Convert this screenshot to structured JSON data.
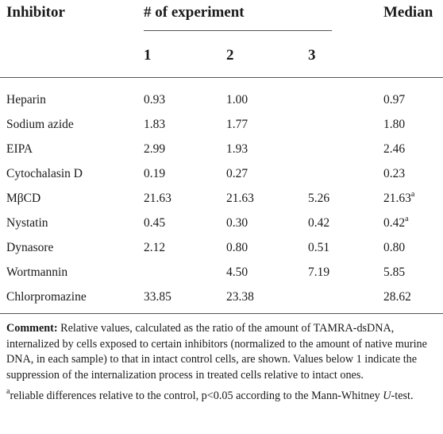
{
  "table": {
    "headers": {
      "inhibitor": "Inhibitor",
      "experiment": "# of experiment",
      "median": "Median",
      "sub": [
        "1",
        "2",
        "3"
      ]
    },
    "rows": [
      {
        "name": "Heparin",
        "e1": "0.93",
        "e2": "1.00",
        "e3": "",
        "median": "0.97",
        "median_sup": ""
      },
      {
        "name": "Sodium azide",
        "e1": "1.83",
        "e2": "1.77",
        "e3": "",
        "median": "1.80",
        "median_sup": ""
      },
      {
        "name": "EIPA",
        "e1": "2.99",
        "e2": "1.93",
        "e3": "",
        "median": "2.46",
        "median_sup": ""
      },
      {
        "name": "Cytochalasin D",
        "e1": "0.19",
        "e2": "0.27",
        "e3": "",
        "median": "0.23",
        "median_sup": ""
      },
      {
        "name": "MβCD",
        "e1": "21.63",
        "e2": "21.63",
        "e3": "5.26",
        "median": "21.63",
        "median_sup": "a"
      },
      {
        "name": "Nystatin",
        "e1": "0.45",
        "e2": "0.30",
        "e3": "0.42",
        "median": "0.42",
        "median_sup": "a"
      },
      {
        "name": "Dynasore",
        "e1": "2.12",
        "e2": "0.80",
        "e3": "0.51",
        "median": "0.80",
        "median_sup": ""
      },
      {
        "name": "Wortmannin",
        "e1": "",
        "e2": "4.50",
        "e3": "7.19",
        "median": "5.85",
        "median_sup": ""
      },
      {
        "name": "Chlorpromazine",
        "e1": "33.85",
        "e2": "23.38",
        "e3": "",
        "median": "28.62",
        "median_sup": ""
      }
    ]
  },
  "footnote": {
    "comment_label": "Comment:",
    "comment_text": " Relative values, calculated as the ratio of the amount of TAMRA-dsDNA, internalized by cells exposed to certain inhibitors (normalized to the amount of native murine DNA, in each sample) to that in intact control cells, are shown. Values below 1 indicate the suppression of the internalization process in treated cells relative to intact ones.",
    "sig_marker": "a",
    "sig_text_1": "reliable differences relative to the control, p<0.05 according to the Mann-Whitney ",
    "sig_italic": "U",
    "sig_text_2": "-test."
  }
}
